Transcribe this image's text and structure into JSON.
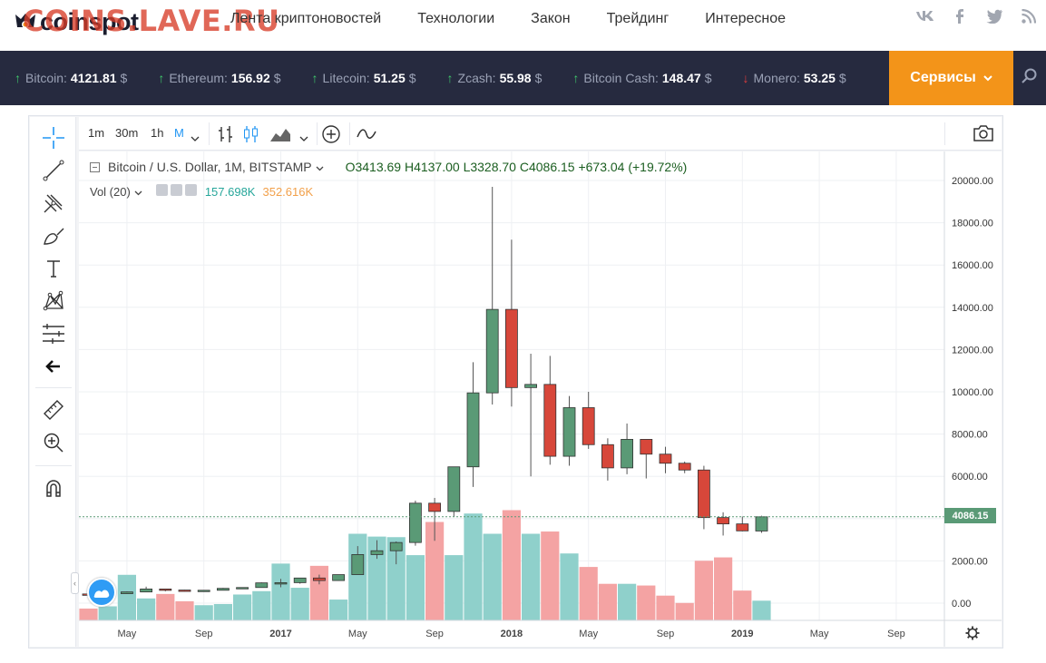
{
  "header": {
    "logo_text": "coinspot",
    "watermark": "COINS.LAVE.RU",
    "nav": [
      "Лента криптоновостей",
      "Технологии",
      "Закон",
      "Трейдинг",
      "Интересное"
    ],
    "social_icons": [
      "vk-icon",
      "facebook-icon",
      "twitter-icon",
      "rss-icon"
    ]
  },
  "ticker": {
    "items": [
      {
        "name": "Bitcoin:",
        "price": "4121.81",
        "currency": "$",
        "direction": "up"
      },
      {
        "name": "Ethereum:",
        "price": "156.92",
        "currency": "$",
        "direction": "up"
      },
      {
        "name": "Litecoin:",
        "price": "51.25",
        "currency": "$",
        "direction": "up"
      },
      {
        "name": "Zcash:",
        "price": "55.98",
        "currency": "$",
        "direction": "up"
      },
      {
        "name": "Bitcoin Cash:",
        "price": "148.47",
        "currency": "$",
        "direction": "up"
      },
      {
        "name": "Monero:",
        "price": "53.25",
        "currency": "$",
        "direction": "down"
      }
    ],
    "services_label": "Сервисы",
    "up_color": "#3fc66b",
    "down_color": "#e23d3d"
  },
  "toolbar": {
    "timeframes": [
      "1m",
      "30m",
      "1h",
      "M"
    ],
    "active_timeframe": "M"
  },
  "legend": {
    "symbol": "Bitcoin / U.S. Dollar, 1M, BITSTAMP",
    "ohlc": "O3413.69  H4137.00  L3328.70  C4086.15  +673.04 (+19.72%)",
    "vol_label": "Vol (20)",
    "vol_value1": "157.698K",
    "vol_value2": "352.616K"
  },
  "colors": {
    "up_candle": "#5a9a76",
    "down_candle": "#d7473a",
    "up_volume": "#8fd0cb",
    "down_volume": "#f4a3a3",
    "accent": "#f39419"
  },
  "chart_data": {
    "type": "candlestick",
    "title": "Bitcoin / U.S. Dollar, 1M, BITSTAMP",
    "y_ticks": [
      "20000.00",
      "18000.00",
      "16000.00",
      "14000.00",
      "12000.00",
      "10000.00",
      "8000.00",
      "6000.00",
      "4000.00",
      "2000.00",
      "0.00"
    ],
    "ylim": [
      -600,
      20600
    ],
    "x_ticks": [
      "May",
      "Sep",
      "2017",
      "May",
      "Sep",
      "2018",
      "May",
      "Sep",
      "2019",
      "May",
      "Sep"
    ],
    "last_price_label": "4086.15",
    "candles": [
      {
        "month": "2016-03",
        "open": 435,
        "high": 440,
        "low": 400,
        "close": 415,
        "volume": 0.21
      },
      {
        "month": "2016-04",
        "open": 415,
        "high": 465,
        "low": 410,
        "close": 450,
        "volume": 0.25
      },
      {
        "month": "2016-05",
        "open": 450,
        "high": 550,
        "low": 440,
        "close": 530,
        "volume": 0.81
      },
      {
        "month": "2016-06",
        "open": 530,
        "high": 780,
        "low": 520,
        "close": 670,
        "volume": 0.39
      },
      {
        "month": "2016-07",
        "open": 670,
        "high": 680,
        "low": 560,
        "close": 620,
        "volume": 0.47
      },
      {
        "month": "2016-08",
        "open": 620,
        "high": 630,
        "low": 540,
        "close": 575,
        "volume": 0.34
      },
      {
        "month": "2016-09",
        "open": 575,
        "high": 620,
        "low": 570,
        "close": 610,
        "volume": 0.27
      },
      {
        "month": "2016-10",
        "open": 610,
        "high": 720,
        "low": 605,
        "close": 700,
        "volume": 0.29
      },
      {
        "month": "2016-11",
        "open": 700,
        "high": 750,
        "low": 690,
        "close": 740,
        "volume": 0.46
      },
      {
        "month": "2016-12",
        "open": 740,
        "high": 980,
        "low": 740,
        "close": 960,
        "volume": 0.52
      },
      {
        "month": "2017-01",
        "open": 960,
        "high": 1150,
        "low": 750,
        "close": 970,
        "volume": 1.01
      },
      {
        "month": "2017-02",
        "open": 970,
        "high": 1200,
        "low": 920,
        "close": 1190,
        "volume": 0.58
      },
      {
        "month": "2017-03",
        "open": 1190,
        "high": 1350,
        "low": 890,
        "close": 1070,
        "volume": 0.97
      },
      {
        "month": "2017-04",
        "open": 1070,
        "high": 1350,
        "low": 1060,
        "close": 1350,
        "volume": 0.37
      },
      {
        "month": "2017-05",
        "open": 1350,
        "high": 2700,
        "low": 1350,
        "close": 2300,
        "volume": 1.54
      },
      {
        "month": "2017-06",
        "open": 2300,
        "high": 2980,
        "low": 2100,
        "close": 2480,
        "volume": 1.49
      },
      {
        "month": "2017-07",
        "open": 2480,
        "high": 2920,
        "low": 1840,
        "close": 2870,
        "volume": 1.48
      },
      {
        "month": "2017-08",
        "open": 2870,
        "high": 4850,
        "low": 2720,
        "close": 4730,
        "volume": 1.16
      },
      {
        "month": "2017-09",
        "open": 4730,
        "high": 4980,
        "low": 2950,
        "close": 4340,
        "volume": 1.75
      },
      {
        "month": "2017-10",
        "open": 4340,
        "high": 6450,
        "low": 4100,
        "close": 6450,
        "volume": 1.16
      },
      {
        "month": "2017-11",
        "open": 6450,
        "high": 11400,
        "low": 5500,
        "close": 9950,
        "volume": 1.9
      },
      {
        "month": "2017-12",
        "open": 9950,
        "high": 19700,
        "low": 9400,
        "close": 13900,
        "volume": 1.54
      },
      {
        "month": "2018-01",
        "open": 13900,
        "high": 17200,
        "low": 9300,
        "close": 10200,
        "volume": 1.96
      },
      {
        "month": "2018-02",
        "open": 10200,
        "high": 11800,
        "low": 6000,
        "close": 10350,
        "volume": 1.54
      },
      {
        "month": "2018-03",
        "open": 10350,
        "high": 11700,
        "low": 6550,
        "close": 6950,
        "volume": 1.58
      },
      {
        "month": "2018-04",
        "open": 6950,
        "high": 9800,
        "low": 6500,
        "close": 9250,
        "volume": 1.19
      },
      {
        "month": "2018-05",
        "open": 9250,
        "high": 10000,
        "low": 7300,
        "close": 7500,
        "volume": 0.95
      },
      {
        "month": "2018-06",
        "open": 7500,
        "high": 7800,
        "low": 5800,
        "close": 6400,
        "volume": 0.65
      },
      {
        "month": "2018-07",
        "open": 6400,
        "high": 8500,
        "low": 6100,
        "close": 7750,
        "volume": 0.65
      },
      {
        "month": "2018-08",
        "open": 7750,
        "high": 7750,
        "low": 5900,
        "close": 7050,
        "volume": 0.62
      },
      {
        "month": "2018-09",
        "open": 7050,
        "high": 7400,
        "low": 6150,
        "close": 6620,
        "volume": 0.44
      },
      {
        "month": "2018-10",
        "open": 6620,
        "high": 6700,
        "low": 6150,
        "close": 6300,
        "volume": 0.31
      },
      {
        "month": "2018-11",
        "open": 6300,
        "high": 6500,
        "low": 3500,
        "close": 4050,
        "volume": 1.06
      },
      {
        "month": "2018-12",
        "open": 4050,
        "high": 4300,
        "low": 3200,
        "close": 3750,
        "volume": 1.12
      },
      {
        "month": "2019-01",
        "open": 3750,
        "high": 4100,
        "low": 3400,
        "close": 3420,
        "volume": 0.53
      },
      {
        "month": "2019-02",
        "open": 3413.69,
        "high": 4137,
        "low": 3328.7,
        "close": 4086.15,
        "volume": 0.35
      }
    ]
  }
}
